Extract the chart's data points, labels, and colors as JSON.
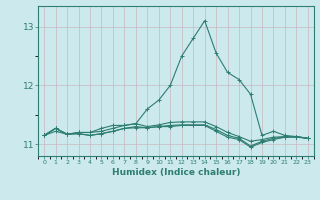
{
  "title": "",
  "xlabel": "Humidex (Indice chaleur)",
  "ylabel": "",
  "background_color": "#cce9ed",
  "grid_color": "#b8d8dc",
  "line_color": "#2e7d72",
  "xlim": [
    -0.5,
    23.5
  ],
  "ylim": [
    10.8,
    13.35
  ],
  "yticks": [
    11,
    12,
    13
  ],
  "xticks": [
    0,
    1,
    2,
    3,
    4,
    5,
    6,
    7,
    8,
    9,
    10,
    11,
    12,
    13,
    14,
    15,
    16,
    17,
    18,
    19,
    20,
    21,
    22,
    23
  ],
  "series": [
    [
      11.15,
      11.27,
      11.17,
      11.2,
      11.2,
      11.27,
      11.32,
      11.32,
      11.35,
      11.6,
      11.75,
      12.0,
      12.5,
      12.8,
      13.1,
      12.55,
      12.22,
      12.1,
      11.85,
      11.15,
      11.22,
      11.15,
      11.13,
      11.1
    ],
    [
      11.15,
      11.27,
      11.17,
      11.2,
      11.2,
      11.22,
      11.27,
      11.32,
      11.35,
      11.3,
      11.33,
      11.37,
      11.38,
      11.38,
      11.38,
      11.3,
      11.2,
      11.13,
      11.05,
      11.08,
      11.12,
      11.13,
      11.13,
      11.1
    ],
    [
      11.15,
      11.27,
      11.17,
      11.18,
      11.15,
      11.18,
      11.22,
      11.27,
      11.3,
      11.28,
      11.3,
      11.32,
      11.33,
      11.33,
      11.33,
      11.25,
      11.15,
      11.1,
      10.97,
      11.05,
      11.1,
      11.12,
      11.13,
      11.1
    ],
    [
      11.15,
      11.22,
      11.17,
      11.18,
      11.15,
      11.18,
      11.22,
      11.27,
      11.28,
      11.28,
      11.3,
      11.3,
      11.32,
      11.32,
      11.32,
      11.22,
      11.12,
      11.08,
      10.95,
      11.03,
      11.08,
      11.12,
      11.12,
      11.1
    ]
  ]
}
